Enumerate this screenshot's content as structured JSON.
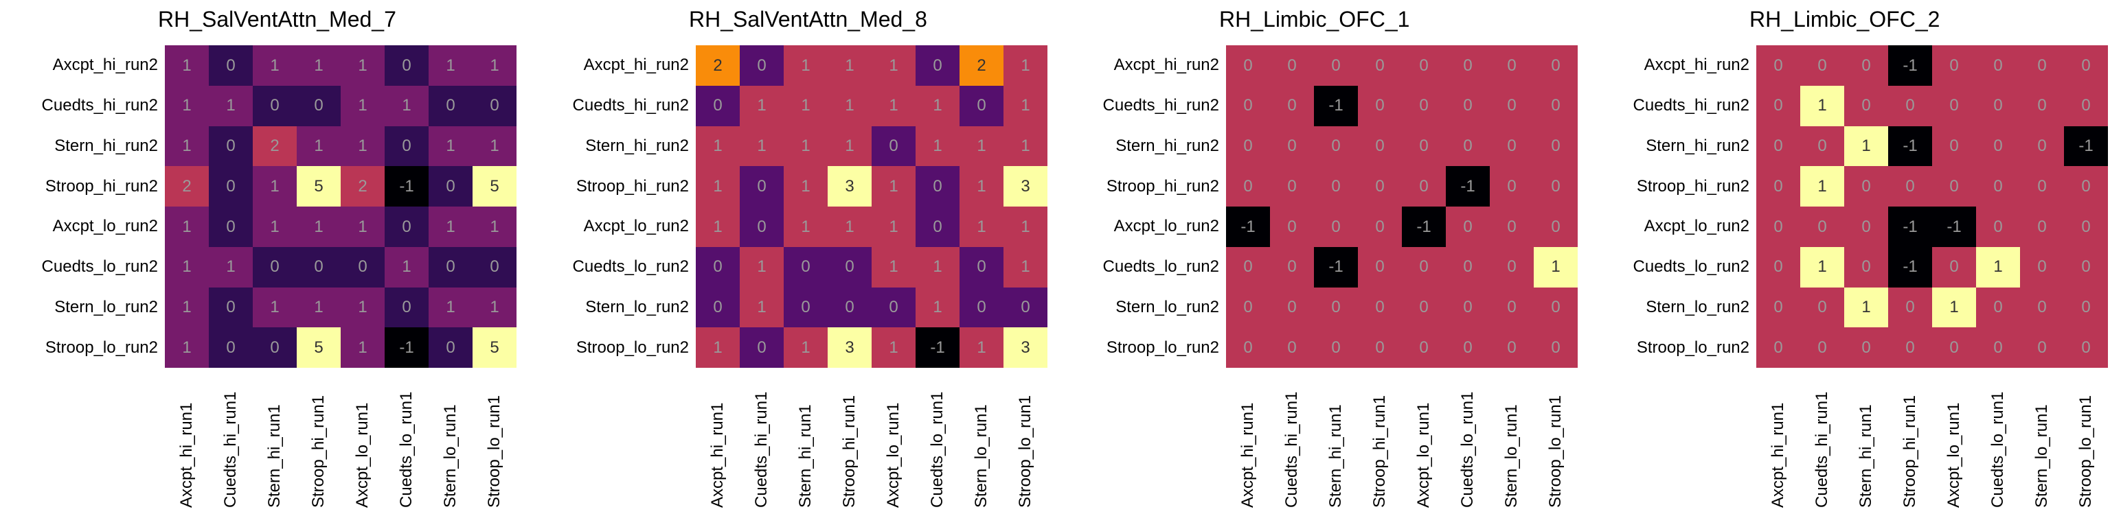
{
  "chart_data": [
    {
      "type": "heatmap",
      "title": "RH_SalVentAttn_Med_7",
      "rows": [
        "Axcpt_hi_run2",
        "Cuedts_hi_run2",
        "Stern_hi_run2",
        "Stroop_hi_run2",
        "Axcpt_lo_run2",
        "Cuedts_lo_run2",
        "Stern_lo_run2",
        "Stroop_lo_run2"
      ],
      "cols": [
        "Axcpt_hi_run1",
        "Cuedts_hi_run1",
        "Stern_hi_run1",
        "Stroop_hi_run1",
        "Axcpt_lo_run1",
        "Cuedts_lo_run1",
        "Stern_lo_run1",
        "Stroop_lo_run1"
      ],
      "values": [
        [
          1,
          0,
          1,
          1,
          1,
          0,
          1,
          1
        ],
        [
          1,
          1,
          0,
          0,
          1,
          1,
          0,
          0
        ],
        [
          1,
          0,
          2,
          1,
          1,
          0,
          1,
          1
        ],
        [
          2,
          0,
          1,
          5,
          2,
          -1,
          0,
          5
        ],
        [
          1,
          0,
          1,
          1,
          1,
          0,
          1,
          1
        ],
        [
          1,
          1,
          0,
          0,
          0,
          1,
          0,
          0
        ],
        [
          1,
          0,
          1,
          1,
          1,
          0,
          1,
          1
        ],
        [
          1,
          0,
          0,
          5,
          1,
          -1,
          0,
          5
        ]
      ],
      "vmin": -1,
      "vmax": 5,
      "colormap": "inferno"
    },
    {
      "type": "heatmap",
      "title": "RH_SalVentAttn_Med_8",
      "rows": [
        "Axcpt_hi_run2",
        "Cuedts_hi_run2",
        "Stern_hi_run2",
        "Stroop_hi_run2",
        "Axcpt_lo_run2",
        "Cuedts_lo_run2",
        "Stern_lo_run2",
        "Stroop_lo_run2"
      ],
      "cols": [
        "Axcpt_hi_run1",
        "Cuedts_hi_run1",
        "Stern_hi_run1",
        "Stroop_hi_run1",
        "Axcpt_lo_run1",
        "Cuedts_lo_run1",
        "Stern_lo_run1",
        "Stroop_lo_run1"
      ],
      "values": [
        [
          2,
          0,
          1,
          1,
          1,
          0,
          2,
          1
        ],
        [
          0,
          1,
          1,
          1,
          1,
          1,
          0,
          1
        ],
        [
          1,
          1,
          1,
          1,
          0,
          1,
          1,
          1
        ],
        [
          1,
          0,
          1,
          3,
          1,
          0,
          1,
          3
        ],
        [
          1,
          0,
          1,
          1,
          1,
          0,
          1,
          1
        ],
        [
          0,
          1,
          0,
          0,
          1,
          1,
          0,
          1
        ],
        [
          0,
          1,
          0,
          0,
          0,
          1,
          0,
          0
        ],
        [
          1,
          0,
          1,
          3,
          1,
          -1,
          1,
          3
        ]
      ],
      "vmin": -1,
      "vmax": 3,
      "colormap": "inferno"
    },
    {
      "type": "heatmap",
      "title": "RH_Limbic_OFC_1",
      "rows": [
        "Axcpt_hi_run2",
        "Cuedts_hi_run2",
        "Stern_hi_run2",
        "Stroop_hi_run2",
        "Axcpt_lo_run2",
        "Cuedts_lo_run2",
        "Stern_lo_run2",
        "Stroop_lo_run2"
      ],
      "cols": [
        "Axcpt_hi_run1",
        "Cuedts_hi_run1",
        "Stern_hi_run1",
        "Stroop_hi_run1",
        "Axcpt_lo_run1",
        "Cuedts_lo_run1",
        "Stern_lo_run1",
        "Stroop_lo_run1"
      ],
      "values": [
        [
          0,
          0,
          0,
          0,
          0,
          0,
          0,
          0
        ],
        [
          0,
          0,
          -1,
          0,
          0,
          0,
          0,
          0
        ],
        [
          0,
          0,
          0,
          0,
          0,
          0,
          0,
          0
        ],
        [
          0,
          0,
          0,
          0,
          0,
          -1,
          0,
          0
        ],
        [
          -1,
          0,
          0,
          0,
          -1,
          0,
          0,
          0
        ],
        [
          0,
          0,
          -1,
          0,
          0,
          0,
          0,
          1
        ],
        [
          0,
          0,
          0,
          0,
          0,
          0,
          0,
          0
        ],
        [
          0,
          0,
          0,
          0,
          0,
          0,
          0,
          0
        ]
      ],
      "vmin": -1,
      "vmax": 1,
      "colormap": "inferno"
    },
    {
      "type": "heatmap",
      "title": "RH_Limbic_OFC_2",
      "rows": [
        "Axcpt_hi_run2",
        "Cuedts_hi_run2",
        "Stern_hi_run2",
        "Stroop_hi_run2",
        "Axcpt_lo_run2",
        "Cuedts_lo_run2",
        "Stern_lo_run2",
        "Stroop_lo_run2"
      ],
      "cols": [
        "Axcpt_hi_run1",
        "Cuedts_hi_run1",
        "Stern_hi_run1",
        "Stroop_hi_run1",
        "Axcpt_lo_run1",
        "Cuedts_lo_run1",
        "Stern_lo_run1",
        "Stroop_lo_run1"
      ],
      "values": [
        [
          0,
          0,
          0,
          -1,
          0,
          0,
          0,
          0
        ],
        [
          0,
          1,
          0,
          0,
          0,
          0,
          0,
          0
        ],
        [
          0,
          0,
          1,
          -1,
          0,
          0,
          0,
          -1
        ],
        [
          0,
          1,
          0,
          0,
          0,
          0,
          0,
          0
        ],
        [
          0,
          0,
          0,
          -1,
          -1,
          0,
          0,
          0
        ],
        [
          0,
          1,
          0,
          -1,
          0,
          1,
          0,
          0
        ],
        [
          0,
          0,
          1,
          0,
          1,
          0,
          0,
          0
        ],
        [
          0,
          0,
          0,
          0,
          0,
          0,
          0,
          0
        ]
      ],
      "vmin": -1,
      "vmax": 1,
      "colormap": "inferno"
    }
  ]
}
